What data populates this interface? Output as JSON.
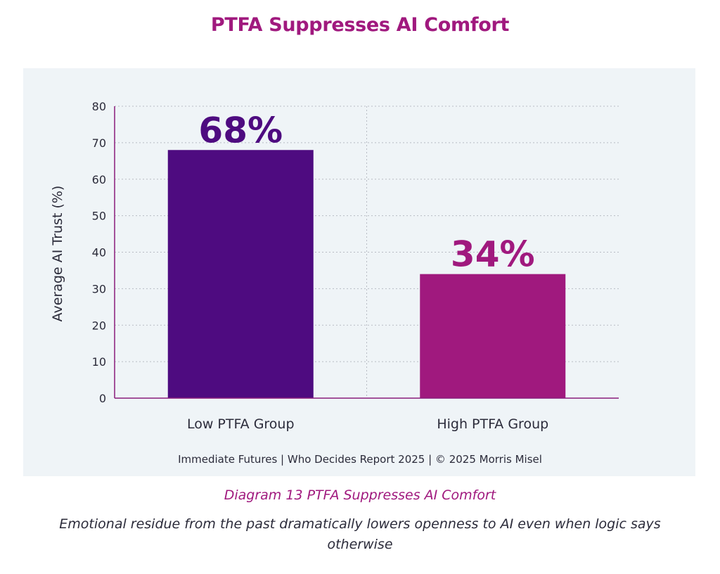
{
  "title": "PTFA Suppresses AI Comfort",
  "footer": "Immediate Futures  |  Who Decides Report 2025  | © 2025 Morris Misel",
  "caption": "Diagram 13 PTFA Suppresses AI Comfort",
  "description": "Emotional residue from the past dramatically lowers openness to AI even when logic says otherwise",
  "colors": {
    "title": "#a0197e",
    "panel_bg": "#eff4f7",
    "axis": "#8a1c7c",
    "grid": "#b8bcc4",
    "text": "#2b2b3a"
  },
  "chart_data": {
    "type": "bar",
    "title": "PTFA Suppresses AI Comfort",
    "categories": [
      "Low PTFA Group",
      "High PTFA Group"
    ],
    "values": [
      68,
      34
    ],
    "data_labels": [
      "68%",
      "34%"
    ],
    "bar_colors": [
      "#4e0b80",
      "#a0197e"
    ],
    "label_colors": [
      "#4e0b80",
      "#a0197e"
    ],
    "xlabel": "",
    "ylabel": "Average AI Trust (%)",
    "ylim": [
      0,
      80
    ],
    "yticks": [
      0,
      10,
      20,
      30,
      40,
      50,
      60,
      70,
      80
    ],
    "grid": true
  }
}
